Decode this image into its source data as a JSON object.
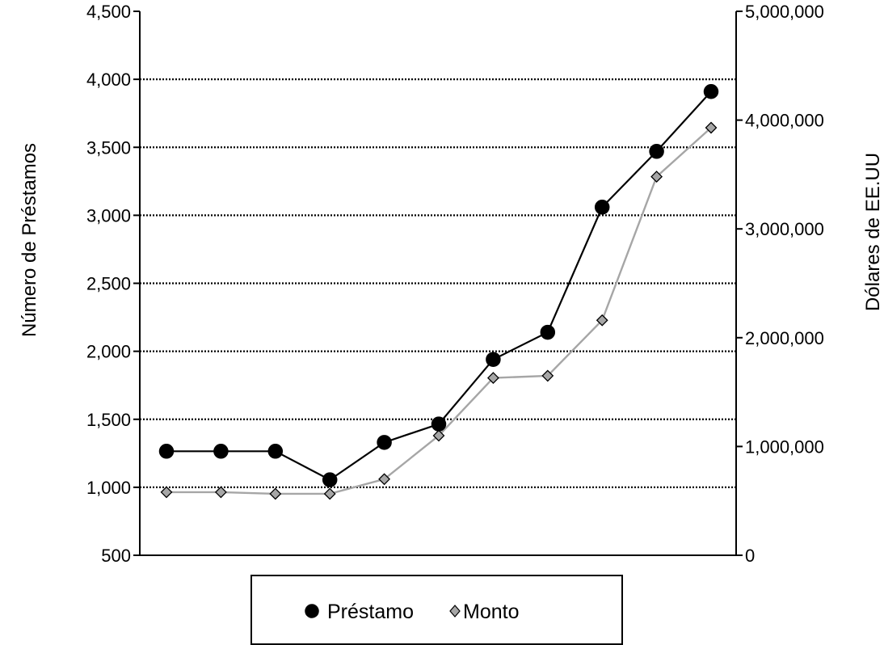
{
  "chart_data": {
    "type": "line",
    "title": "",
    "ylabel": "Número de Préstamos",
    "y2label": "Dólares de EE.UU",
    "ylim": [
      500,
      4500
    ],
    "y_ticks": [
      "500",
      "1,000",
      "1,500",
      "2,000",
      "2,500",
      "3,000",
      "3,500",
      "4,000",
      "4,500"
    ],
    "y2lim": [
      0,
      5000000
    ],
    "y2_ticks": [
      "0",
      "1,000,000",
      "2,000,000",
      "3,000,000",
      "4,000,000",
      "5,000,000"
    ],
    "grid": true,
    "legend_position": "bottom",
    "series": [
      {
        "name": "Préstamo",
        "axis": "left",
        "marker": "circle",
        "color": "#000000",
        "values": [
          1265,
          1265,
          1265,
          1055,
          1330,
          1465,
          1940,
          2140,
          3060,
          3470,
          3910
        ]
      },
      {
        "name": "Monto",
        "axis": "right",
        "marker": "diamond",
        "color": "#a6a6a6",
        "values": [
          580000,
          580000,
          565000,
          565000,
          700000,
          1100000,
          1630000,
          1650000,
          2160000,
          3480000,
          3930000
        ]
      }
    ]
  }
}
